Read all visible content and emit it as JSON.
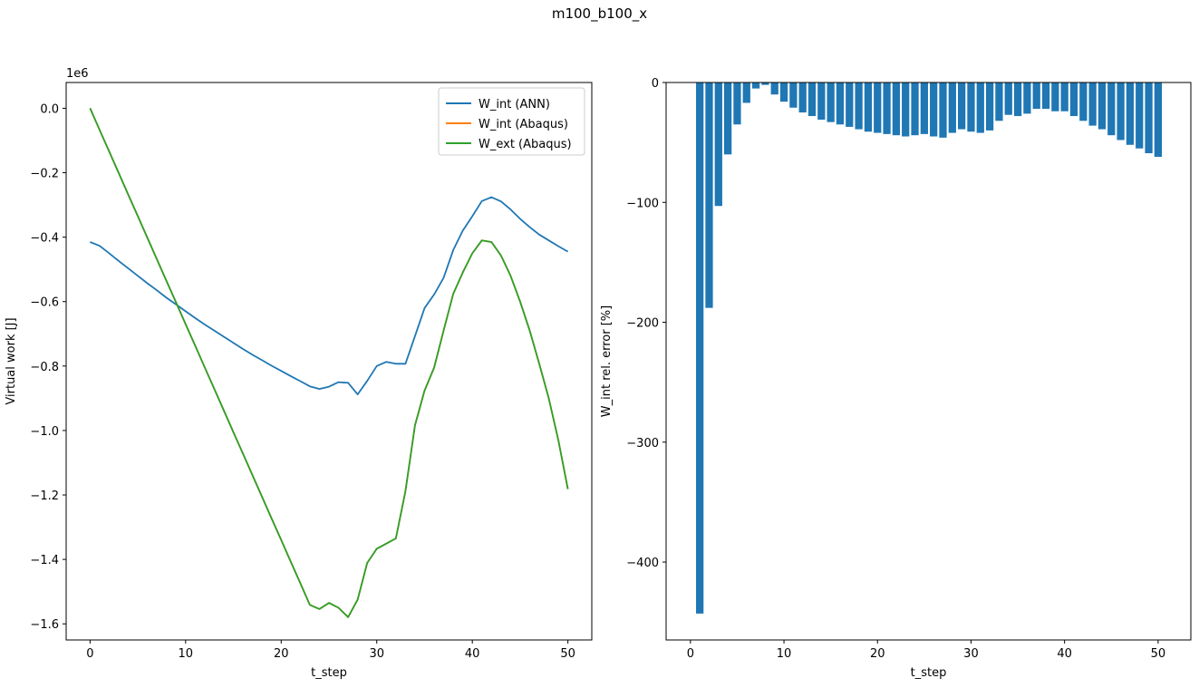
{
  "figure": {
    "suptitle": "m100_b100_x"
  },
  "colors": {
    "ann": "#1f77b4",
    "abaqus_int": "#ff7f0e",
    "abaqus_ext": "#2ca02c",
    "bar": "#1f77b4"
  },
  "chart_data": [
    {
      "type": "line",
      "title": "",
      "xlabel": "t_step",
      "ylabel": "Virtual work [J]",
      "offset_text": "1e6",
      "xlim": [
        -2.5,
        52.5
      ],
      "ylim": [
        -1.65,
        0.08
      ],
      "xticks": [
        0,
        10,
        20,
        30,
        40,
        50
      ],
      "xtick_labels": [
        "0",
        "10",
        "20",
        "30",
        "40",
        "50"
      ],
      "yticks": [
        0.0,
        -0.2,
        -0.4,
        -0.6,
        -0.8,
        -1.0,
        -1.2,
        -1.4,
        -1.6
      ],
      "ytick_labels": [
        "0.0",
        "−0.2",
        "−0.4",
        "−0.6",
        "−0.8",
        "−1.0",
        "−1.2",
        "−1.4",
        "−1.6"
      ],
      "legend_position": "top-right",
      "x": [
        0,
        1,
        2,
        3,
        4,
        5,
        6,
        7,
        8,
        9,
        10,
        11,
        12,
        13,
        14,
        15,
        16,
        17,
        18,
        19,
        20,
        21,
        22,
        23,
        24,
        25,
        26,
        27,
        28,
        29,
        30,
        31,
        32,
        33,
        34,
        35,
        36,
        37,
        38,
        39,
        40,
        41,
        42,
        43,
        44,
        45,
        46,
        47,
        48,
        49,
        50
      ],
      "series": [
        {
          "name": "W_int (ANN)",
          "color": "#1f77b4",
          "values": [
            -0.415,
            -0.427,
            -0.45,
            -0.474,
            -0.497,
            -0.52,
            -0.543,
            -0.565,
            -0.588,
            -0.609,
            -0.63,
            -0.651,
            -0.671,
            -0.69,
            -0.709,
            -0.728,
            -0.747,
            -0.765,
            -0.782,
            -0.799,
            -0.815,
            -0.831,
            -0.847,
            -0.863,
            -0.871,
            -0.864,
            -0.85,
            -0.852,
            -0.888,
            -0.846,
            -0.8,
            -0.787,
            -0.793,
            -0.793,
            -0.707,
            -0.62,
            -0.578,
            -0.526,
            -0.44,
            -0.38,
            -0.335,
            -0.288,
            -0.276,
            -0.289,
            -0.314,
            -0.343,
            -0.369,
            -0.392,
            -0.41,
            -0.428,
            -0.445
          ]
        },
        {
          "name": "W_int (Abaqus)",
          "color": "#ff7f0e",
          "values": [
            0.0,
            -0.067,
            -0.134,
            -0.201,
            -0.268,
            -0.335,
            -0.402,
            -0.469,
            -0.536,
            -0.603,
            -0.67,
            -0.737,
            -0.804,
            -0.871,
            -0.938,
            -1.005,
            -1.072,
            -1.139,
            -1.206,
            -1.273,
            -1.34,
            -1.407,
            -1.474,
            -1.541,
            -1.554,
            -1.535,
            -1.55,
            -1.579,
            -1.525,
            -1.411,
            -1.367,
            -1.351,
            -1.335,
            -1.188,
            -0.984,
            -0.876,
            -0.805,
            -0.69,
            -0.576,
            -0.51,
            -0.45,
            -0.41,
            -0.415,
            -0.457,
            -0.52,
            -0.6,
            -0.69,
            -0.793,
            -0.9,
            -1.03,
            -1.182
          ]
        },
        {
          "name": "W_ext (Abaqus)",
          "color": "#2ca02c",
          "values": [
            0.0,
            -0.067,
            -0.134,
            -0.201,
            -0.268,
            -0.335,
            -0.402,
            -0.469,
            -0.536,
            -0.603,
            -0.67,
            -0.737,
            -0.804,
            -0.871,
            -0.938,
            -1.005,
            -1.072,
            -1.139,
            -1.206,
            -1.273,
            -1.34,
            -1.407,
            -1.474,
            -1.541,
            -1.554,
            -1.535,
            -1.55,
            -1.579,
            -1.525,
            -1.411,
            -1.367,
            -1.351,
            -1.335,
            -1.188,
            -0.984,
            -0.876,
            -0.805,
            -0.69,
            -0.576,
            -0.51,
            -0.45,
            -0.41,
            -0.415,
            -0.457,
            -0.52,
            -0.6,
            -0.69,
            -0.793,
            -0.9,
            -1.03,
            -1.182
          ]
        }
      ]
    },
    {
      "type": "bar",
      "title": "",
      "xlabel": "t_step",
      "ylabel": "W_int rel. error [%]",
      "xlim": [
        -2.6,
        53.5
      ],
      "ylim": [
        -465,
        0
      ],
      "xticks": [
        0,
        10,
        20,
        30,
        40,
        50
      ],
      "xtick_labels": [
        "0",
        "10",
        "20",
        "30",
        "40",
        "50"
      ],
      "yticks": [
        0,
        -100,
        -200,
        -300,
        -400
      ],
      "ytick_labels": [
        "0",
        "−100",
        "−200",
        "−300",
        "−400"
      ],
      "x": [
        1,
        2,
        3,
        4,
        5,
        6,
        7,
        8,
        9,
        10,
        11,
        12,
        13,
        14,
        15,
        16,
        17,
        18,
        19,
        20,
        21,
        22,
        23,
        24,
        25,
        26,
        27,
        28,
        29,
        30,
        31,
        32,
        33,
        34,
        35,
        36,
        37,
        38,
        39,
        40,
        41,
        42,
        43,
        44,
        45,
        46,
        47,
        48,
        49,
        50
      ],
      "values": [
        -443,
        -188,
        -103,
        -60,
        -35,
        -17,
        -5,
        -2,
        -10,
        -16,
        -21,
        -25,
        -28,
        -31,
        -33,
        -35,
        -37,
        -39,
        -41,
        -42,
        -43,
        -44,
        -45,
        -44,
        -43,
        -45,
        -46,
        -42,
        -39,
        -41,
        -42,
        -40,
        -32,
        -27,
        -28,
        -26,
        -22,
        -22,
        -24,
        -24,
        -28,
        -32,
        -36,
        -39,
        -44,
        -48,
        -52,
        -55,
        -59,
        -62
      ]
    }
  ]
}
